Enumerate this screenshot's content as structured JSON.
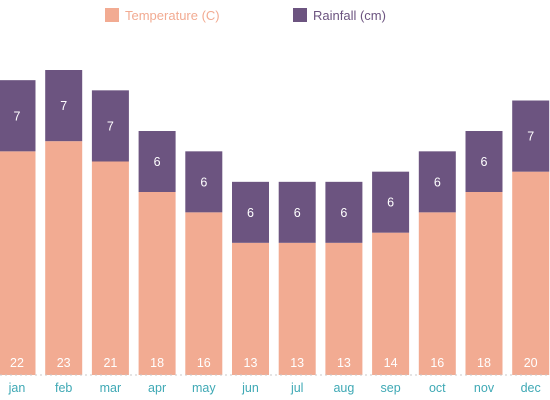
{
  "chart_data": {
    "type": "bar",
    "stacked": true,
    "categories": [
      "jan",
      "feb",
      "mar",
      "apr",
      "may",
      "jun",
      "jul",
      "aug",
      "sep",
      "oct",
      "nov",
      "dec"
    ],
    "series": [
      {
        "name": "Temperature (C)",
        "color": "#f2ab92",
        "values": [
          22,
          23,
          21,
          18,
          16,
          13,
          13,
          13,
          14,
          16,
          18,
          20
        ]
      },
      {
        "name": "Rainfall (cm)",
        "color": "#6c5480",
        "values": [
          7,
          7,
          7,
          6,
          6,
          6,
          6,
          6,
          6,
          6,
          6,
          7
        ]
      }
    ],
    "ylim": [
      0,
      36
    ],
    "legend_position": "top",
    "grid": false,
    "tick_label_color": "#3fa9b5",
    "bar_label_color": "#ffffff"
  }
}
